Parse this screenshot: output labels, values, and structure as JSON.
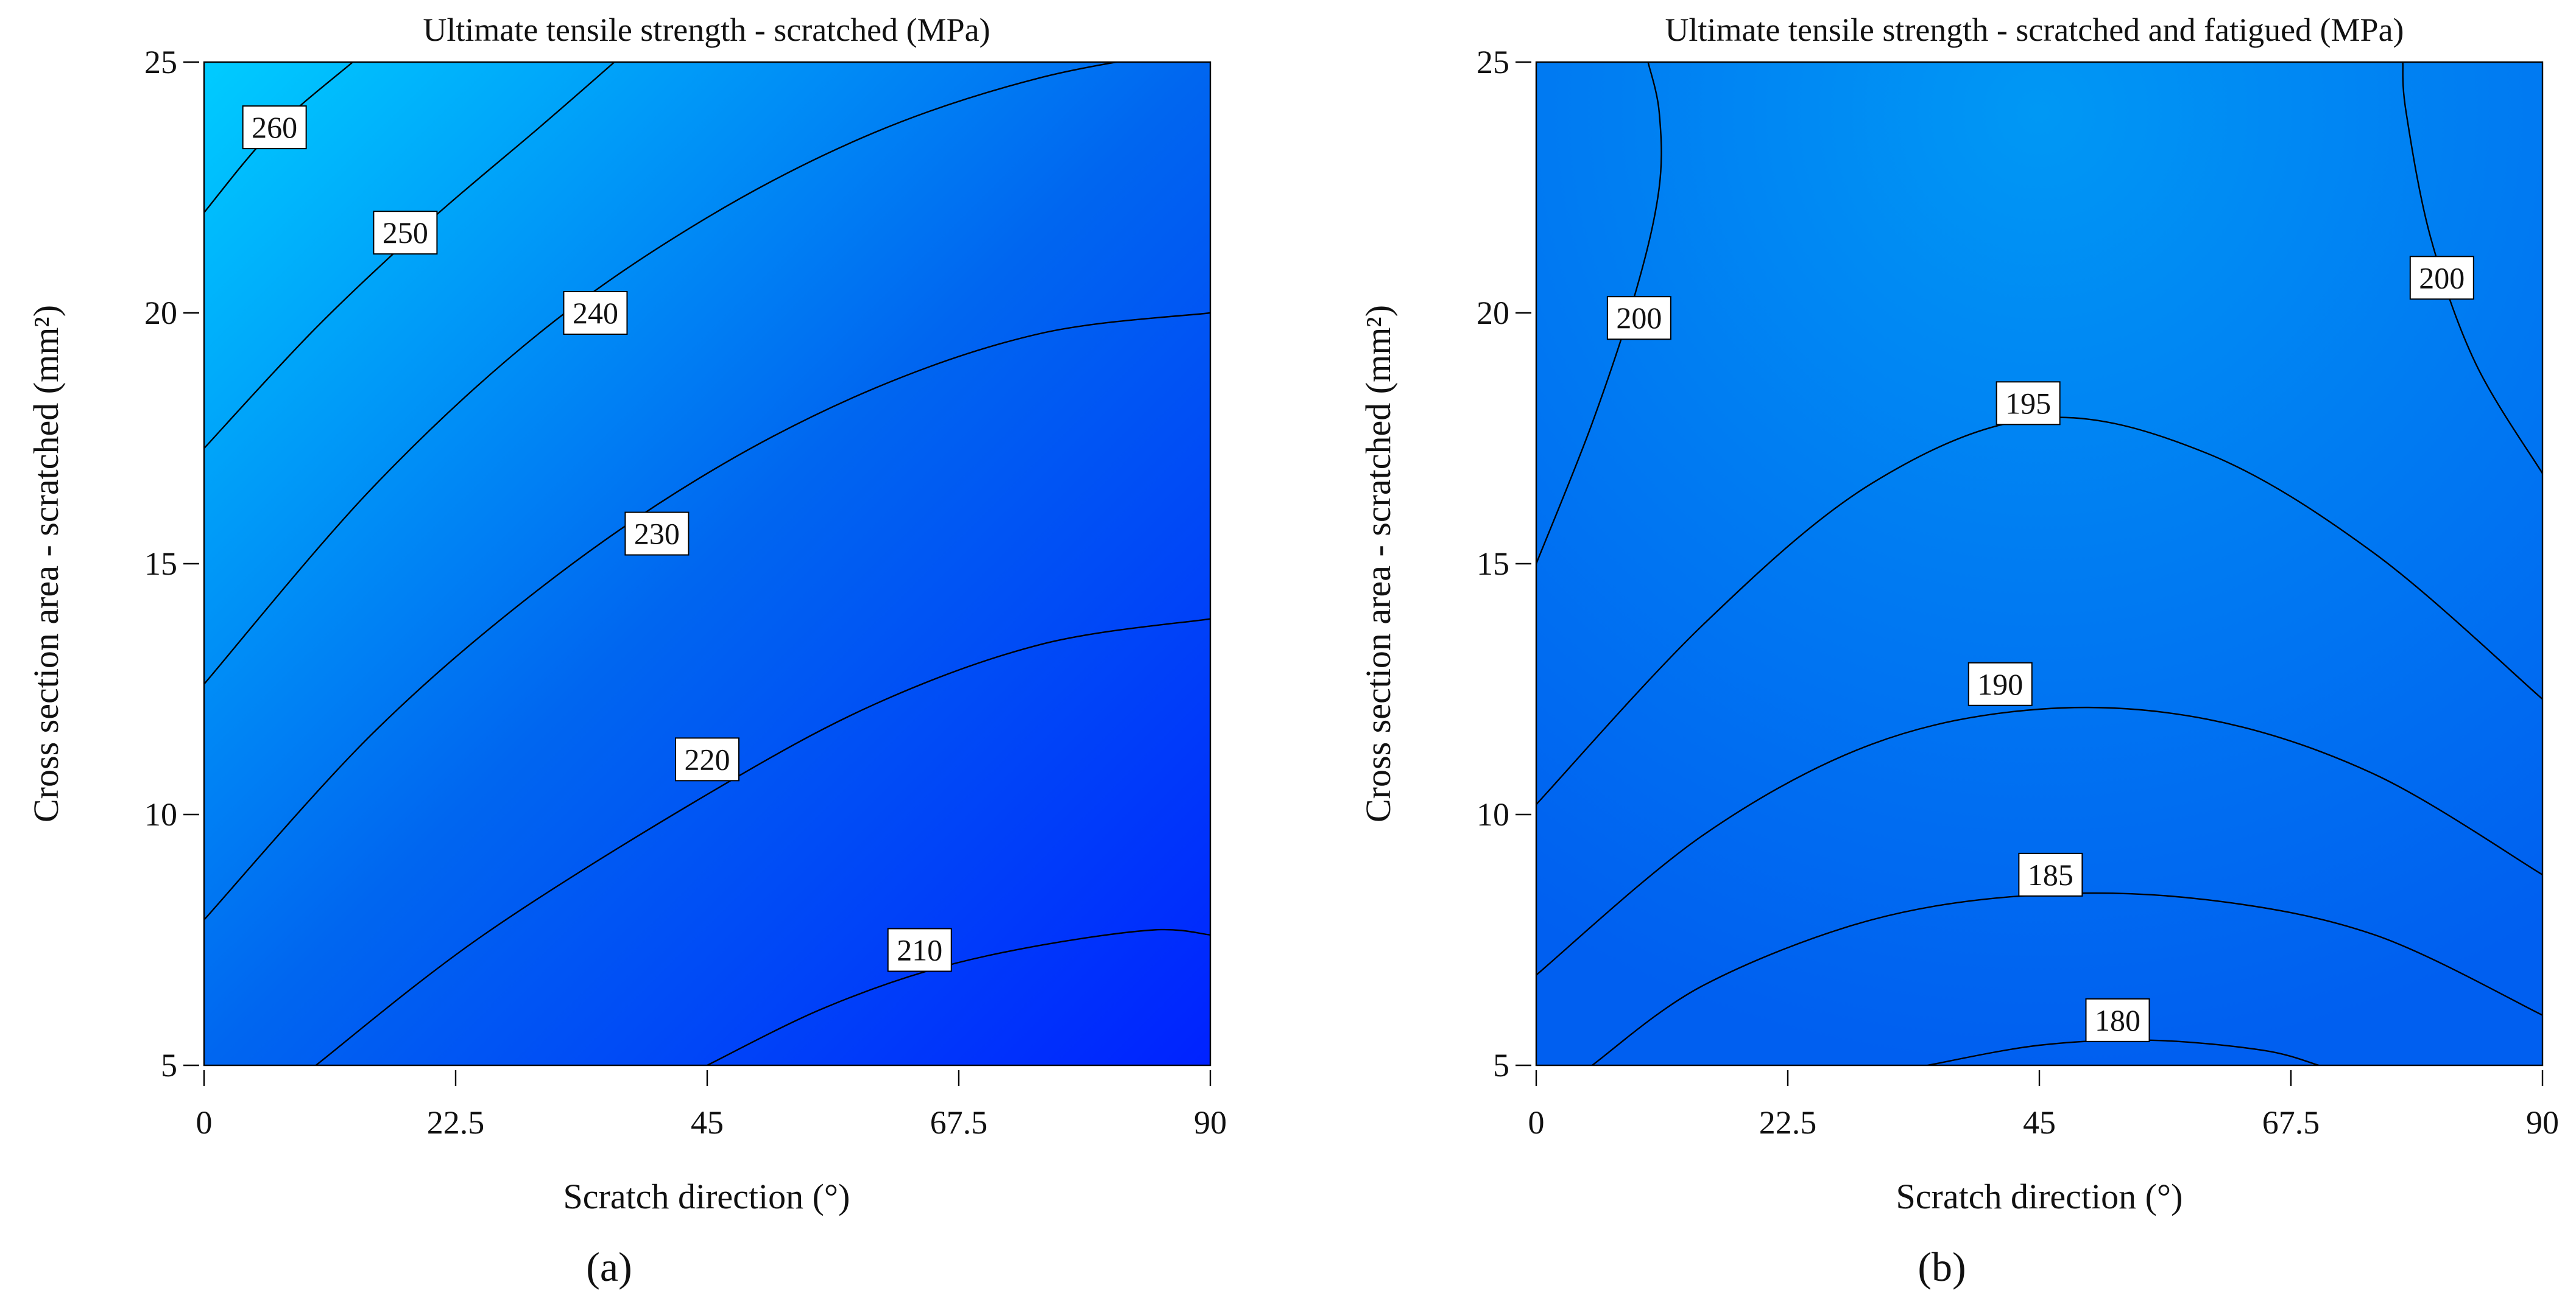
{
  "chart_data": [
    {
      "type": "contour",
      "caption": "(a)",
      "title": "Ultimate tensile strength - scratched (MPa)",
      "xlabel": "Scratch direction (°)",
      "ylabel": "Cross section area - scratched (mm²)",
      "xlim": [
        0,
        90
      ],
      "ylim": [
        5,
        25
      ],
      "xticks": [
        "0",
        "22.5",
        "45",
        "67.5",
        "90"
      ],
      "yticks": [
        "5",
        "10",
        "15",
        "20",
        "25"
      ],
      "colors": {
        "low": "#0022ff",
        "mid": "#0066f0",
        "high": "#00ccff"
      },
      "grid": false,
      "contours": [
        {
          "level": "260",
          "points": [
            [
              0,
              22
            ],
            [
              6,
              23.6
            ],
            [
              13.3,
              25
            ]
          ]
        },
        {
          "level": "250",
          "points": [
            [
              0,
              17.3
            ],
            [
              10,
              19.7
            ],
            [
              20,
              21.8
            ],
            [
              30,
              23.7
            ],
            [
              36.7,
              25
            ]
          ]
        },
        {
          "level": "240",
          "points": [
            [
              0,
              12.6
            ],
            [
              15,
              16.5
            ],
            [
              30,
              19.6
            ],
            [
              45,
              21.9
            ],
            [
              60,
              23.6
            ],
            [
              75,
              24.7
            ],
            [
              90,
              25.3
            ]
          ]
        },
        {
          "level": "230",
          "points": [
            [
              0,
              7.9
            ],
            [
              15,
              11.6
            ],
            [
              30,
              14.5
            ],
            [
              45,
              16.8
            ],
            [
              60,
              18.5
            ],
            [
              75,
              19.6
            ],
            [
              90,
              20
            ]
          ]
        },
        {
          "level": "220",
          "points": [
            [
              10,
              5
            ],
            [
              25,
              7.6
            ],
            [
              45,
              10.4
            ],
            [
              60,
              12.2
            ],
            [
              75,
              13.4
            ],
            [
              90,
              13.9
            ]
          ]
        },
        {
          "level": "210",
          "points": [
            [
              45,
              5
            ],
            [
              55,
              6.1
            ],
            [
              65,
              6.9
            ],
            [
              75,
              7.4
            ],
            [
              85,
              7.7
            ],
            [
              90,
              7.6
            ]
          ]
        }
      ],
      "labels": [
        {
          "text": "260",
          "x": 6.3,
          "y": 23.7
        },
        {
          "text": "250",
          "x": 18,
          "y": 21.6
        },
        {
          "text": "240",
          "x": 35,
          "y": 20
        },
        {
          "text": "230",
          "x": 40.5,
          "y": 15.6
        },
        {
          "text": "220",
          "x": 45,
          "y": 11.1
        },
        {
          "text": "210",
          "x": 64,
          "y": 7.3
        }
      ]
    },
    {
      "type": "contour",
      "caption": "(b)",
      "title": "Ultimate tensile strength - scratched and fatigued (MPa)",
      "xlabel": "Scratch direction (°)",
      "ylabel": "Cross section area - scratched (mm²)",
      "xlim": [
        0,
        90
      ],
      "ylim": [
        5,
        25
      ],
      "xticks": [
        "0",
        "22.5",
        "45",
        "67.5",
        "90"
      ],
      "yticks": [
        "5",
        "10",
        "15",
        "20",
        "25"
      ],
      "colors": {
        "low": "#005ff0",
        "mid": "#0078f2",
        "high": "#0098f4"
      },
      "grid": false,
      "contours": [
        {
          "level": "200",
          "points": [
            [
              0,
              15
            ],
            [
              5,
              17.8
            ],
            [
              9,
              20.5
            ],
            [
              11,
              22.5
            ],
            [
              11,
              24
            ],
            [
              10,
              25
            ]
          ]
        },
        {
          "level": "200",
          "points": [
            [
              90,
              16.8
            ],
            [
              84,
              19
            ],
            [
              80,
              21.5
            ],
            [
              77.8,
              24
            ],
            [
              77.5,
              25
            ]
          ]
        },
        {
          "level": "195",
          "points": [
            [
              0,
              10.2
            ],
            [
              15,
              13.8
            ],
            [
              30,
              16.6
            ],
            [
              45,
              17.9
            ],
            [
              60,
              17.2
            ],
            [
              75,
              15.2
            ],
            [
              90,
              12.3
            ]
          ]
        },
        {
          "level": "190",
          "points": [
            [
              0,
              6.8
            ],
            [
              15,
              9.6
            ],
            [
              30,
              11.4
            ],
            [
              45,
              12.1
            ],
            [
              60,
              11.9
            ],
            [
              75,
              10.8
            ],
            [
              90,
              8.8
            ]
          ]
        },
        {
          "level": "185",
          "points": [
            [
              5,
              5
            ],
            [
              15,
              6.6
            ],
            [
              30,
              7.9
            ],
            [
              45,
              8.4
            ],
            [
              60,
              8.3
            ],
            [
              75,
              7.6
            ],
            [
              90,
              6
            ]
          ]
        },
        {
          "level": "180",
          "points": [
            [
              35,
              5
            ],
            [
              45,
              5.4
            ],
            [
              55,
              5.5
            ],
            [
              65,
              5.3
            ],
            [
              70,
              5
            ]
          ]
        }
      ],
      "labels": [
        {
          "text": "200",
          "x": 9.2,
          "y": 19.9
        },
        {
          "text": "200",
          "x": 81,
          "y": 20.7
        },
        {
          "text": "195",
          "x": 44,
          "y": 18.2
        },
        {
          "text": "190",
          "x": 41.5,
          "y": 12.6
        },
        {
          "text": "185",
          "x": 46,
          "y": 8.8
        },
        {
          "text": "180",
          "x": 52,
          "y": 5.9
        }
      ]
    }
  ]
}
